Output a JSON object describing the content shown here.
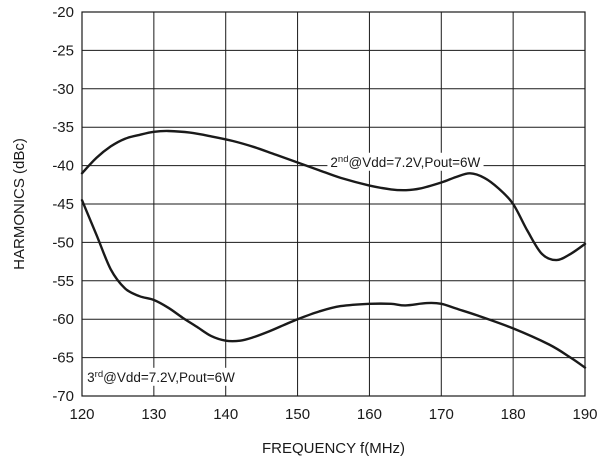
{
  "chart_data": {
    "type": "line",
    "title": "",
    "xlabel": "FREQUENCY f(MHz)",
    "ylabel": "HARMONICS (dBc)",
    "xlim": [
      120,
      190
    ],
    "ylim": [
      -70,
      -20
    ],
    "xticks": [
      120,
      130,
      140,
      150,
      160,
      170,
      180,
      190
    ],
    "yticks": [
      -20,
      -25,
      -30,
      -35,
      -40,
      -45,
      -50,
      -55,
      -60,
      -65,
      -70
    ],
    "grid": true,
    "series": [
      {
        "id": "second",
        "annotation": {
          "prefix": "2",
          "sup": "nd",
          "text": "@Vdd=7.2V,Pout=6W",
          "at": [
            165,
            -39.5
          ]
        },
        "x": [
          120,
          122,
          124,
          126,
          128,
          130,
          132,
          135,
          138,
          141,
          144,
          147,
          150,
          153,
          156,
          160,
          163,
          165,
          167,
          170,
          172,
          174,
          176,
          178,
          180,
          182,
          184,
          186,
          188,
          190
        ],
        "y": [
          -41,
          -39,
          -37.5,
          -36.5,
          -36,
          -35.6,
          -35.5,
          -35.7,
          -36.2,
          -36.8,
          -37.6,
          -38.6,
          -39.6,
          -40.6,
          -41.6,
          -42.6,
          -43.1,
          -43.2,
          -43,
          -42.2,
          -41.5,
          -41,
          -41.6,
          -43,
          -45,
          -48.5,
          -51.5,
          -52.3,
          -51.5,
          -50.2
        ]
      },
      {
        "id": "third",
        "annotation": {
          "prefix": "3",
          "sup": "rd",
          "text": "@Vdd=7.2V,Pout=6W",
          "at": [
            131,
            -67.5
          ]
        },
        "x": [
          120,
          122,
          124,
          126,
          128,
          130,
          132,
          134,
          136,
          138,
          140,
          142,
          144,
          146,
          148,
          150,
          153,
          156,
          160,
          163,
          165,
          168,
          170,
          172,
          175,
          180,
          185,
          188,
          190
        ],
        "y": [
          -44.5,
          -49,
          -53.5,
          -56,
          -57,
          -57.5,
          -58.5,
          -59.8,
          -61,
          -62.2,
          -62.8,
          -62.8,
          -62.3,
          -61.6,
          -60.8,
          -60,
          -59,
          -58.3,
          -58,
          -58,
          -58.2,
          -57.9,
          -58,
          -58.6,
          -59.5,
          -61.2,
          -63.3,
          -65,
          -66.3
        ]
      }
    ]
  }
}
